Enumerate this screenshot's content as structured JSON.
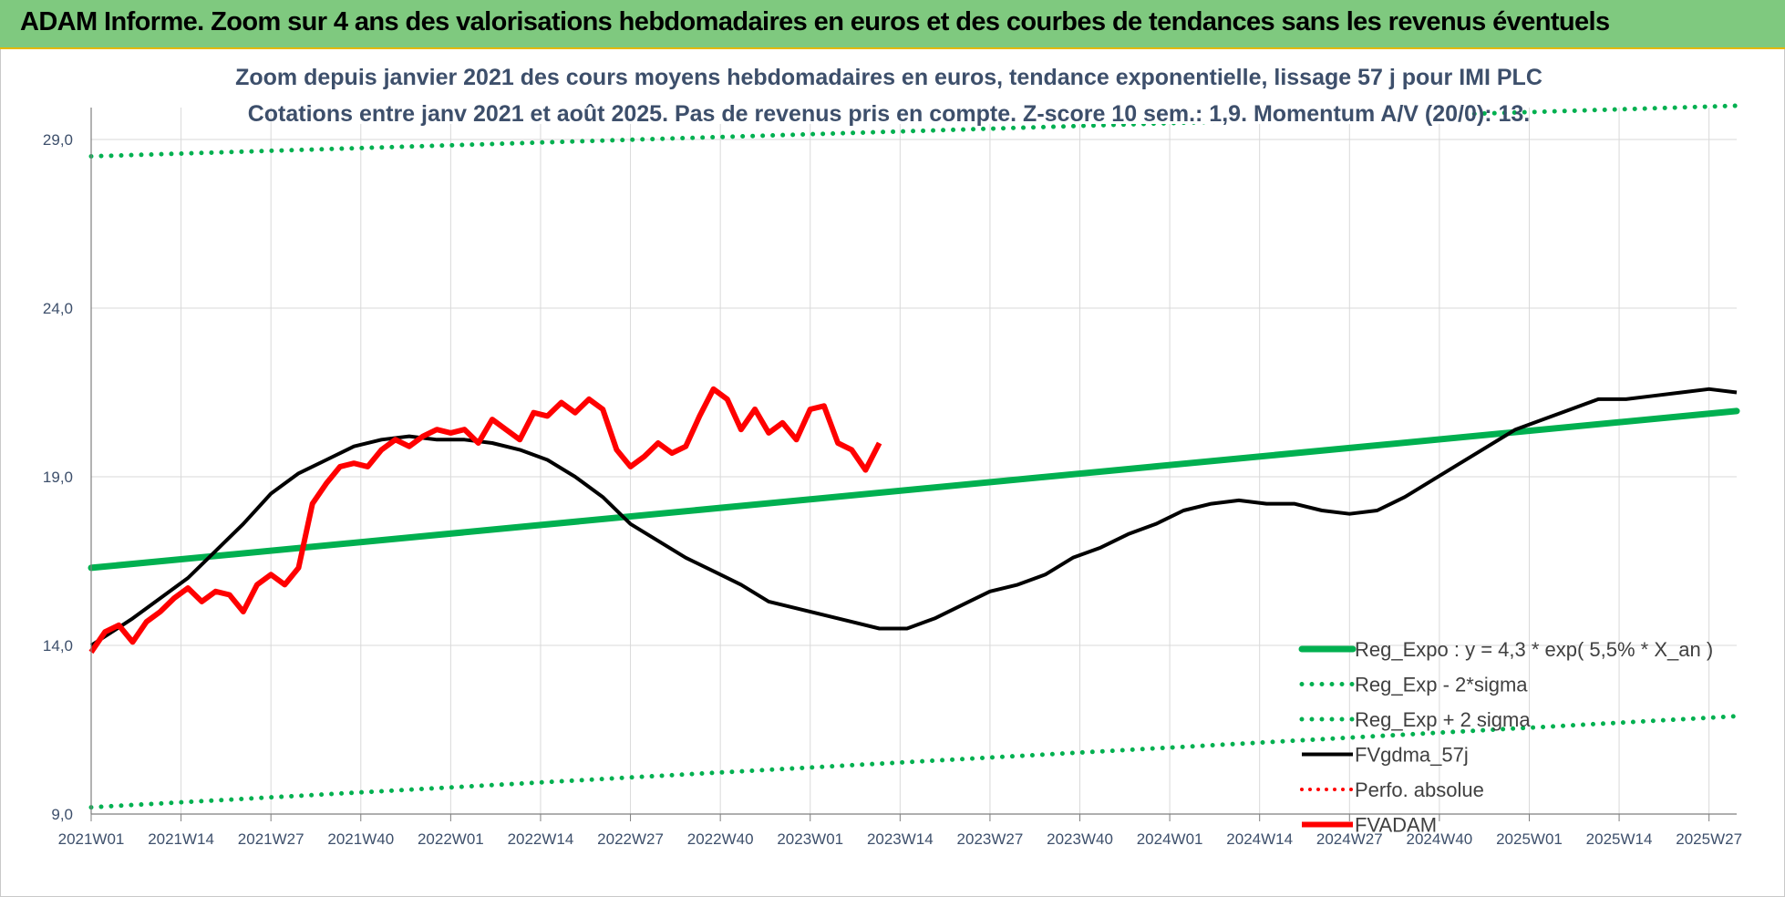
{
  "header": {
    "title": "ADAM Informe. Zoom sur 4 ans des valorisations hebdomadaires en euros et des courbes de tendances sans les revenus éventuels"
  },
  "chart_data": {
    "type": "line",
    "subtitle_lines": [
      "Zoom depuis janvier 2021 des cours moyens hebdomadaires en euros, tendance exponentielle, lissage 57 j pour IMI PLC",
      "Cotations entre janv 2021 et août 2025.  Pas de revenus pris en compte. Z-score 10 sem.: 1,9. Momentum A/V (20/0): 13."
    ],
    "x_ticks": [
      "2021W01",
      "2021W14",
      "2021W27",
      "2021W40",
      "2022W01",
      "2022W14",
      "2022W27",
      "2022W40",
      "2023W01",
      "2023W14",
      "2023W27",
      "2023W40",
      "2024W01",
      "2024W14",
      "2024W27",
      "2024W40",
      "2025W01",
      "2025W14",
      "2025W27"
    ],
    "y_ticks": [
      "9,0",
      "14,0",
      "19,0",
      "24,0",
      "29,0"
    ],
    "ylim": [
      9,
      29
    ],
    "x_range_weeks": [
      0,
      238
    ],
    "grid": true,
    "legend_position": "bottom-right",
    "colors": {
      "green": "#00b050",
      "black": "#000000",
      "red": "#ff0000"
    },
    "series": [
      {
        "name": "Reg_Expo : y = 4,3 * exp( 5,5% *  X_an )",
        "style": "solid-green",
        "points": [
          [
            0,
            16.3
          ],
          [
            238,
            20.95
          ]
        ]
      },
      {
        "name": "Reg_Exp - 2*sigma",
        "style": "dotted-green",
        "points": [
          [
            0,
            9.2
          ],
          [
            238,
            11.9
          ]
        ]
      },
      {
        "name": "Reg_Exp + 2 sigma",
        "style": "dotted-green",
        "points": [
          [
            0,
            28.5
          ],
          [
            238,
            30.0
          ]
        ]
      },
      {
        "name": "FVgdma_57j",
        "style": "solid-black",
        "points": [
          [
            0,
            14
          ],
          [
            3,
            14.4
          ],
          [
            6,
            14.8
          ],
          [
            10,
            15.4
          ],
          [
            14,
            16
          ],
          [
            18,
            16.8
          ],
          [
            22,
            17.6
          ],
          [
            26,
            18.5
          ],
          [
            30,
            19.1
          ],
          [
            34,
            19.5
          ],
          [
            38,
            19.9
          ],
          [
            42,
            20.1
          ],
          [
            46,
            20.2
          ],
          [
            50,
            20.1
          ],
          [
            54,
            20.1
          ],
          [
            58,
            20
          ],
          [
            62,
            19.8
          ],
          [
            66,
            19.5
          ],
          [
            70,
            19
          ],
          [
            74,
            18.4
          ],
          [
            78,
            17.6
          ],
          [
            82,
            17.1
          ],
          [
            86,
            16.6
          ],
          [
            90,
            16.2
          ],
          [
            94,
            15.8
          ],
          [
            98,
            15.3
          ],
          [
            102,
            15.1
          ],
          [
            106,
            14.9
          ],
          [
            110,
            14.7
          ],
          [
            114,
            14.5
          ],
          [
            118,
            14.5
          ],
          [
            122,
            14.8
          ],
          [
            126,
            15.2
          ],
          [
            130,
            15.6
          ],
          [
            134,
            15.8
          ],
          [
            138,
            16.1
          ],
          [
            142,
            16.6
          ],
          [
            146,
            16.9
          ],
          [
            150,
            17.3
          ],
          [
            154,
            17.6
          ],
          [
            158,
            18
          ],
          [
            162,
            18.2
          ],
          [
            166,
            18.3
          ],
          [
            170,
            18.2
          ],
          [
            174,
            18.2
          ],
          [
            178,
            18
          ],
          [
            182,
            17.9
          ],
          [
            186,
            18
          ],
          [
            190,
            18.4
          ],
          [
            194,
            18.9
          ],
          [
            198,
            19.4
          ],
          [
            202,
            19.9
          ],
          [
            206,
            20.4
          ],
          [
            210,
            20.7
          ],
          [
            214,
            21
          ],
          [
            218,
            21.3
          ],
          [
            222,
            21.3
          ],
          [
            226,
            21.4
          ],
          [
            230,
            21.5
          ],
          [
            234,
            21.6
          ],
          [
            238,
            21.5
          ]
        ]
      },
      {
        "name": "Perfo. absolue",
        "style": "dotted-red",
        "points": []
      },
      {
        "name": "FVADAM",
        "style": "solid-red",
        "points": [
          [
            0,
            13.8
          ],
          [
            2,
            14.4
          ],
          [
            4,
            14.6
          ],
          [
            6,
            14.1
          ],
          [
            8,
            14.7
          ],
          [
            10,
            15
          ],
          [
            12,
            15.4
          ],
          [
            14,
            15.7
          ],
          [
            16,
            15.3
          ],
          [
            18,
            15.6
          ],
          [
            20,
            15.5
          ],
          [
            22,
            15
          ],
          [
            24,
            15.8
          ],
          [
            26,
            16.1
          ],
          [
            28,
            15.8
          ],
          [
            30,
            16.3
          ],
          [
            32,
            18.2
          ],
          [
            34,
            18.8
          ],
          [
            36,
            19.3
          ],
          [
            38,
            19.4
          ],
          [
            40,
            19.3
          ],
          [
            42,
            19.8
          ],
          [
            44,
            20.1
          ],
          [
            46,
            19.9
          ],
          [
            48,
            20.2
          ],
          [
            50,
            20.4
          ],
          [
            52,
            20.3
          ],
          [
            54,
            20.4
          ],
          [
            56,
            20
          ],
          [
            58,
            20.7
          ],
          [
            60,
            20.4
          ],
          [
            62,
            20.1
          ],
          [
            64,
            20.9
          ],
          [
            66,
            20.8
          ],
          [
            68,
            21.2
          ],
          [
            70,
            20.9
          ],
          [
            72,
            21.3
          ],
          [
            74,
            21
          ],
          [
            76,
            19.8
          ],
          [
            78,
            19.3
          ],
          [
            80,
            19.6
          ],
          [
            82,
            20
          ],
          [
            84,
            19.7
          ],
          [
            86,
            19.9
          ],
          [
            88,
            20.8
          ],
          [
            90,
            21.6
          ],
          [
            92,
            21.3
          ],
          [
            94,
            20.4
          ],
          [
            96,
            21
          ],
          [
            98,
            20.3
          ],
          [
            100,
            20.6
          ],
          [
            102,
            20.1
          ],
          [
            104,
            21
          ],
          [
            106,
            21.1
          ],
          [
            108,
            20
          ],
          [
            110,
            19.8
          ],
          [
            112,
            19.2
          ],
          [
            114,
            20
          ]
        ]
      }
    ]
  }
}
